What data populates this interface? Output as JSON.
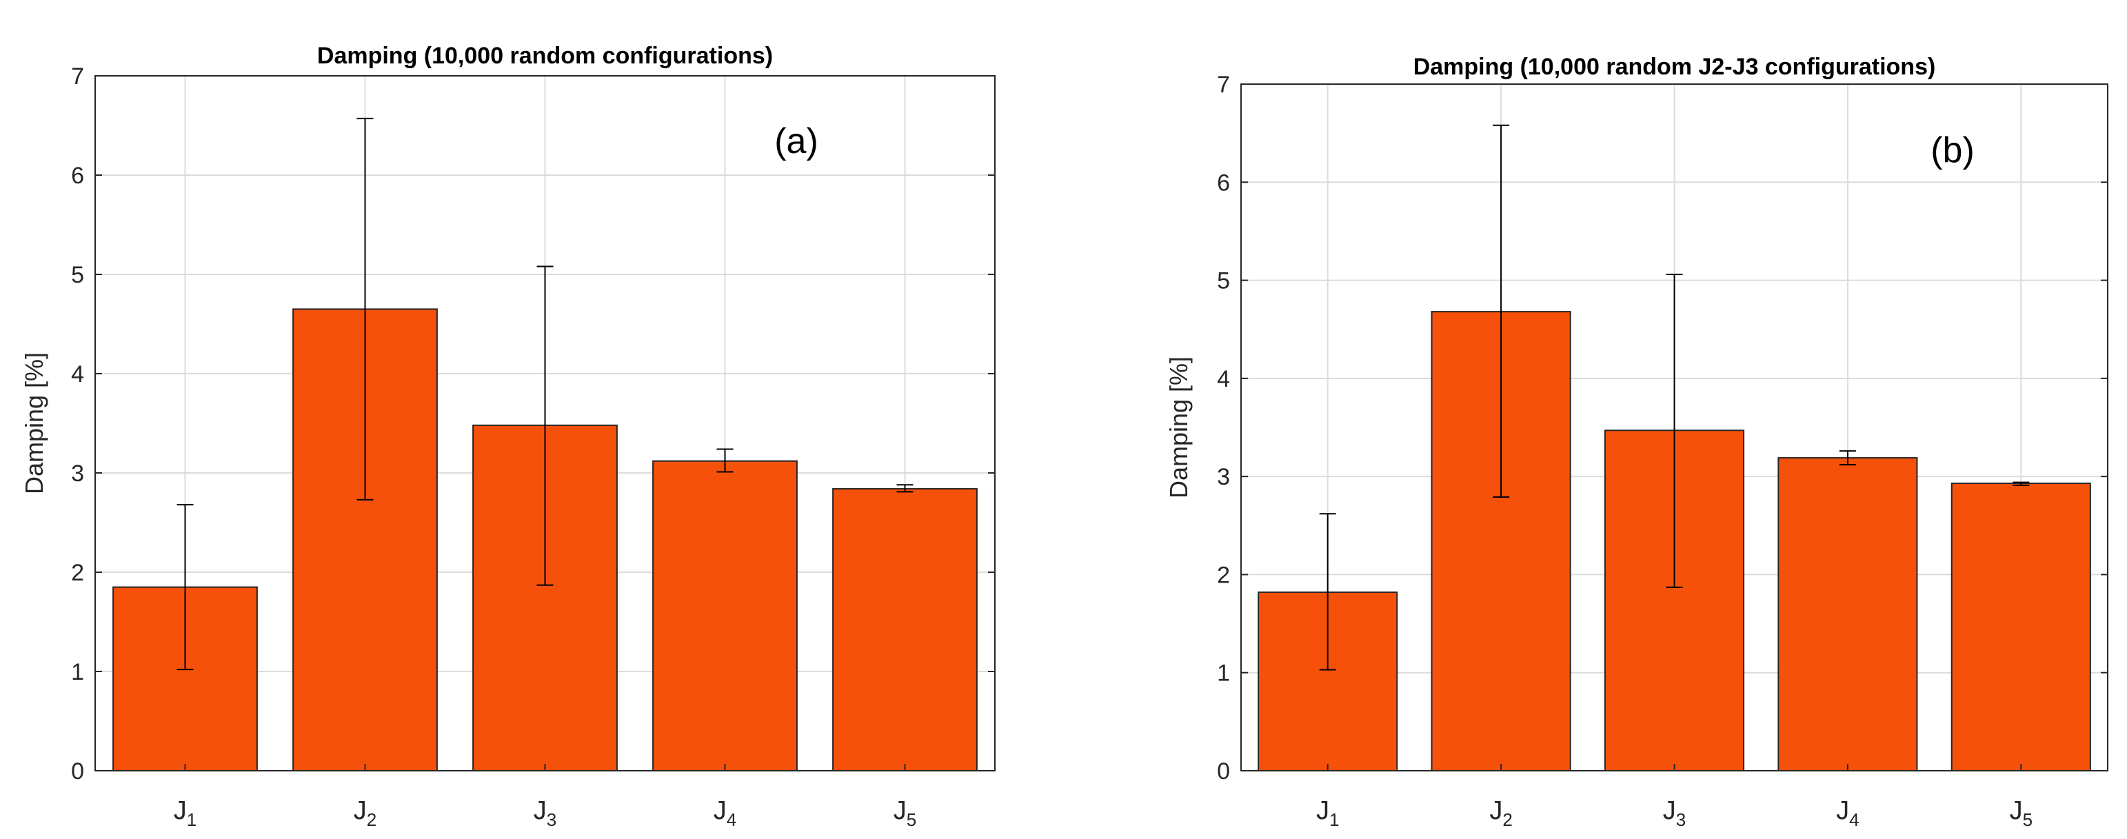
{
  "chart_data": [
    {
      "type": "bar",
      "panel": "(a)",
      "title": "Damping (10,000 random configurations)",
      "xlabel": "",
      "ylabel": "Damping [%]",
      "ylim": [
        0,
        7
      ],
      "yticks": [
        0,
        1,
        2,
        3,
        4,
        5,
        6,
        7
      ],
      "grid": true,
      "categories": [
        {
          "base": "J",
          "sub": "1"
        },
        {
          "base": "J",
          "sub": "2"
        },
        {
          "base": "J",
          "sub": "3"
        },
        {
          "base": "J",
          "sub": "4"
        },
        {
          "base": "J",
          "sub": "5"
        }
      ],
      "values": [
        1.85,
        4.65,
        3.48,
        3.12,
        2.84
      ],
      "error_low": [
        1.02,
        2.73,
        1.87,
        3.01,
        2.81
      ],
      "error_high": [
        2.68,
        6.57,
        5.08,
        3.24,
        2.88
      ],
      "bar_color": "#f6510a"
    },
    {
      "type": "bar",
      "panel": "(b)",
      "title": "Damping (10,000 random J2-J3 configurations)",
      "xlabel": "",
      "ylabel": "Damping [%]",
      "ylim": [
        0,
        7
      ],
      "yticks": [
        0,
        1,
        2,
        3,
        4,
        5,
        6,
        7
      ],
      "grid": true,
      "categories": [
        {
          "base": "J",
          "sub": "1"
        },
        {
          "base": "J",
          "sub": "2"
        },
        {
          "base": "J",
          "sub": "3"
        },
        {
          "base": "J",
          "sub": "4"
        },
        {
          "base": "J",
          "sub": "5"
        }
      ],
      "values": [
        1.82,
        4.68,
        3.47,
        3.19,
        2.93
      ],
      "error_low": [
        1.03,
        2.79,
        1.87,
        3.12,
        2.91
      ],
      "error_high": [
        2.62,
        6.58,
        5.06,
        3.26,
        2.94
      ],
      "bar_color": "#f6510a"
    }
  ]
}
